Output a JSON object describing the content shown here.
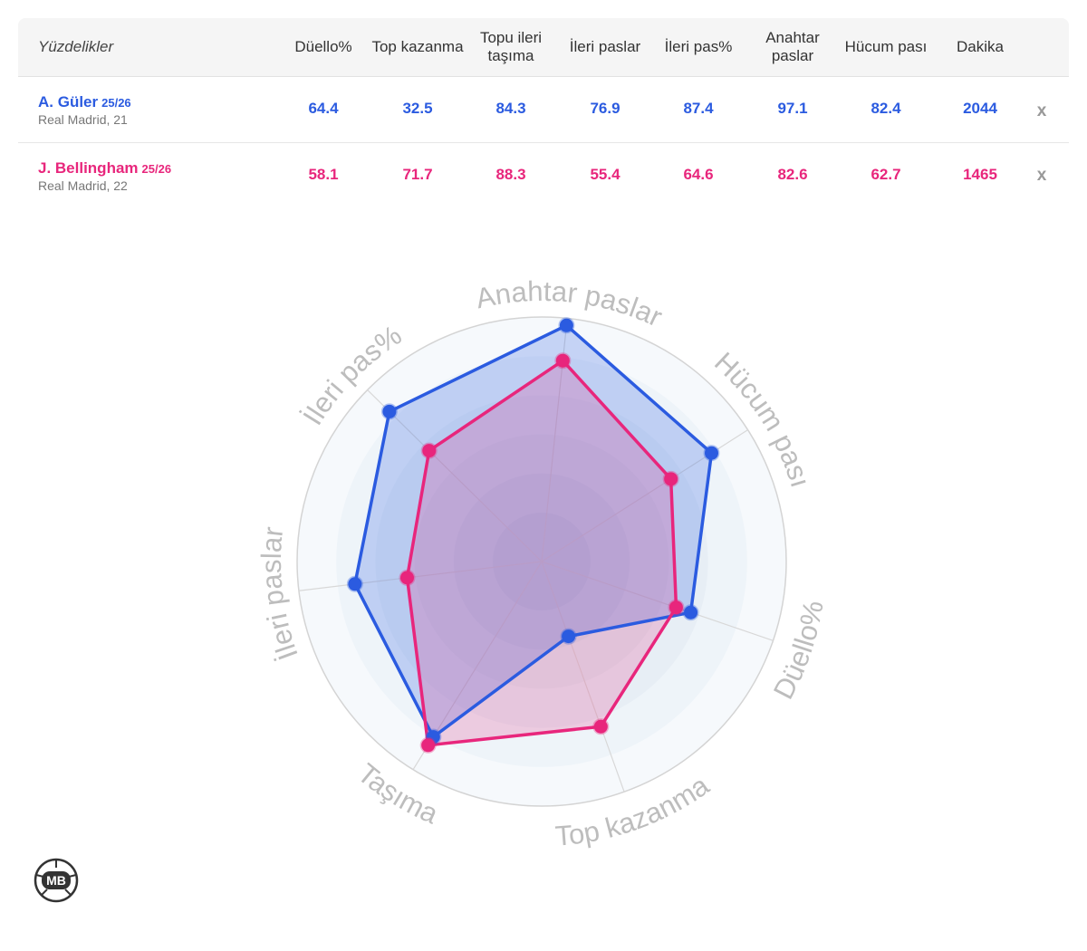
{
  "table": {
    "title": "Yüzdelikler",
    "columns": [
      "Düello%",
      "Top kazanma",
      "Topu ileri taşıma",
      "İleri paslar",
      "İleri pas%",
      "Anahtar paslar",
      "Hücum pası",
      "Dakika"
    ],
    "remove_label": "x",
    "players": [
      {
        "name": "A. Güler",
        "season": "25/26",
        "team": "Real Madrid, 21",
        "color": "#2b5be0",
        "values": [
          "64.4",
          "32.5",
          "84.3",
          "76.9",
          "87.4",
          "97.1",
          "82.4",
          "2044"
        ]
      },
      {
        "name": "J. Bellingham",
        "season": "25/26",
        "team": "Real Madrid, 22",
        "color": "#e8267c",
        "values": [
          "58.1",
          "71.7",
          "88.3",
          "55.4",
          "64.6",
          "82.6",
          "62.7",
          "1465"
        ]
      }
    ]
  },
  "chart_data": {
    "type": "radar",
    "axes": [
      "Anahtar paslar",
      "Hücum pası",
      "Düello%",
      "Top kazanma",
      "Taşıma",
      "İleri paslar",
      "İleri pas%"
    ],
    "range": [
      0,
      100
    ],
    "series": [
      {
        "name": "A. Güler",
        "color": "#2b5be0",
        "values": [
          97.1,
          82.4,
          64.4,
          32.5,
          84.3,
          76.9,
          87.4
        ]
      },
      {
        "name": "J. Bellingham",
        "color": "#e8267c",
        "values": [
          82.6,
          62.7,
          58.1,
          71.7,
          88.3,
          55.4,
          64.6
        ]
      }
    ]
  },
  "logo": {
    "text": "MB",
    "icon": "football-logo-icon"
  }
}
